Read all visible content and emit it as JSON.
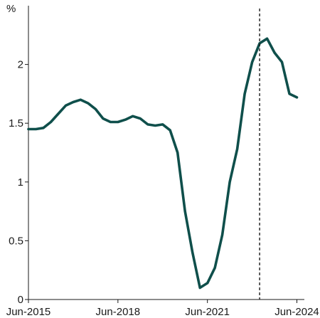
{
  "chart_data": {
    "type": "line",
    "title": "",
    "xlabel": "",
    "ylabel": "%",
    "ylim": [
      0,
      2.5
    ],
    "yticks": [
      0,
      0.5,
      1,
      1.5,
      2
    ],
    "ytick_labels": [
      "0",
      "0.5",
      "1",
      "1.5",
      "2"
    ],
    "xlim": [
      "2015-06",
      "2024-09"
    ],
    "xticks": [
      "2015-06",
      "2018-06",
      "2021-06",
      "2024-06"
    ],
    "xtick_labels": [
      "Jun-2015",
      "Jun-2018",
      "Jun-2021",
      "Jun-2024"
    ],
    "grid": false,
    "legend": "none",
    "series_color": "#0f4f4b",
    "vline": {
      "x": "2023-03",
      "style": "dashed",
      "color": "#1a1a1a"
    },
    "series": [
      {
        "x": [
          "2015-06",
          "2015-09",
          "2015-12",
          "2016-03",
          "2016-06",
          "2016-09",
          "2016-12",
          "2017-03",
          "2017-06",
          "2017-09",
          "2017-12",
          "2018-03",
          "2018-06",
          "2018-09",
          "2018-12",
          "2019-03",
          "2019-06",
          "2019-09",
          "2019-12",
          "2020-03",
          "2020-06",
          "2020-09",
          "2020-12",
          "2021-03",
          "2021-06",
          "2021-09",
          "2021-12",
          "2022-03",
          "2022-06",
          "2022-09",
          "2022-12",
          "2023-03",
          "2023-06",
          "2023-09",
          "2023-12",
          "2024-03",
          "2024-06"
        ],
        "values": [
          1.45,
          1.45,
          1.46,
          1.51,
          1.58,
          1.65,
          1.68,
          1.7,
          1.67,
          1.62,
          1.54,
          1.51,
          1.51,
          1.53,
          1.56,
          1.54,
          1.49,
          1.48,
          1.49,
          1.44,
          1.25,
          0.75,
          0.4,
          0.1,
          0.14,
          0.27,
          0.55,
          1.0,
          1.28,
          1.75,
          2.02,
          2.18,
          2.22,
          2.1,
          2.02,
          1.75,
          1.72
        ]
      }
    ]
  }
}
